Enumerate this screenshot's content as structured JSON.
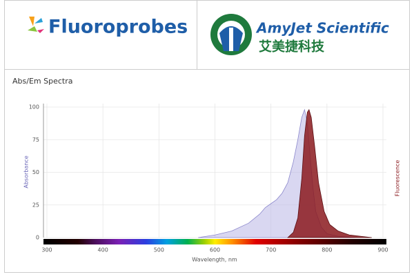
{
  "header": {
    "left_brand": "Fluoroprobes",
    "right_brand": "AmyJet Scientific",
    "right_chinese": "艾美捷科技"
  },
  "chart_data": {
    "type": "area",
    "title": "Abs/Em Spectra",
    "xlabel": "Wavelength, nm",
    "ylabel": "Absorbance",
    "y2label": "Fluorescence",
    "xlim": [
      300,
      900
    ],
    "xticks": [
      300,
      400,
      500,
      600,
      700,
      800,
      900
    ],
    "ylim": [
      0,
      100
    ],
    "yticks": [
      0,
      25,
      50,
      75,
      100
    ],
    "grid": true,
    "series": [
      {
        "color": "#b9b6e6",
        "x": [
          570,
          600,
          630,
          660,
          680,
          690,
          700,
          710,
          720,
          730,
          740,
          748,
          755,
          760,
          765,
          770,
          775,
          780,
          790,
          800,
          820,
          850
        ],
        "values": [
          0,
          2,
          5,
          11,
          18,
          23,
          26,
          29,
          34,
          42,
          58,
          75,
          92,
          98,
          88,
          62,
          38,
          20,
          8,
          3,
          1,
          0
        ]
      },
      {
        "color": "#8b1a1f",
        "x": [
          730,
          740,
          748,
          755,
          760,
          765,
          768,
          772,
          778,
          785,
          795,
          805,
          820,
          840,
          860,
          880
        ],
        "values": [
          0,
          4,
          15,
          45,
          78,
          96,
          98,
          92,
          70,
          42,
          20,
          10,
          5,
          2,
          1,
          0
        ]
      }
    ]
  }
}
